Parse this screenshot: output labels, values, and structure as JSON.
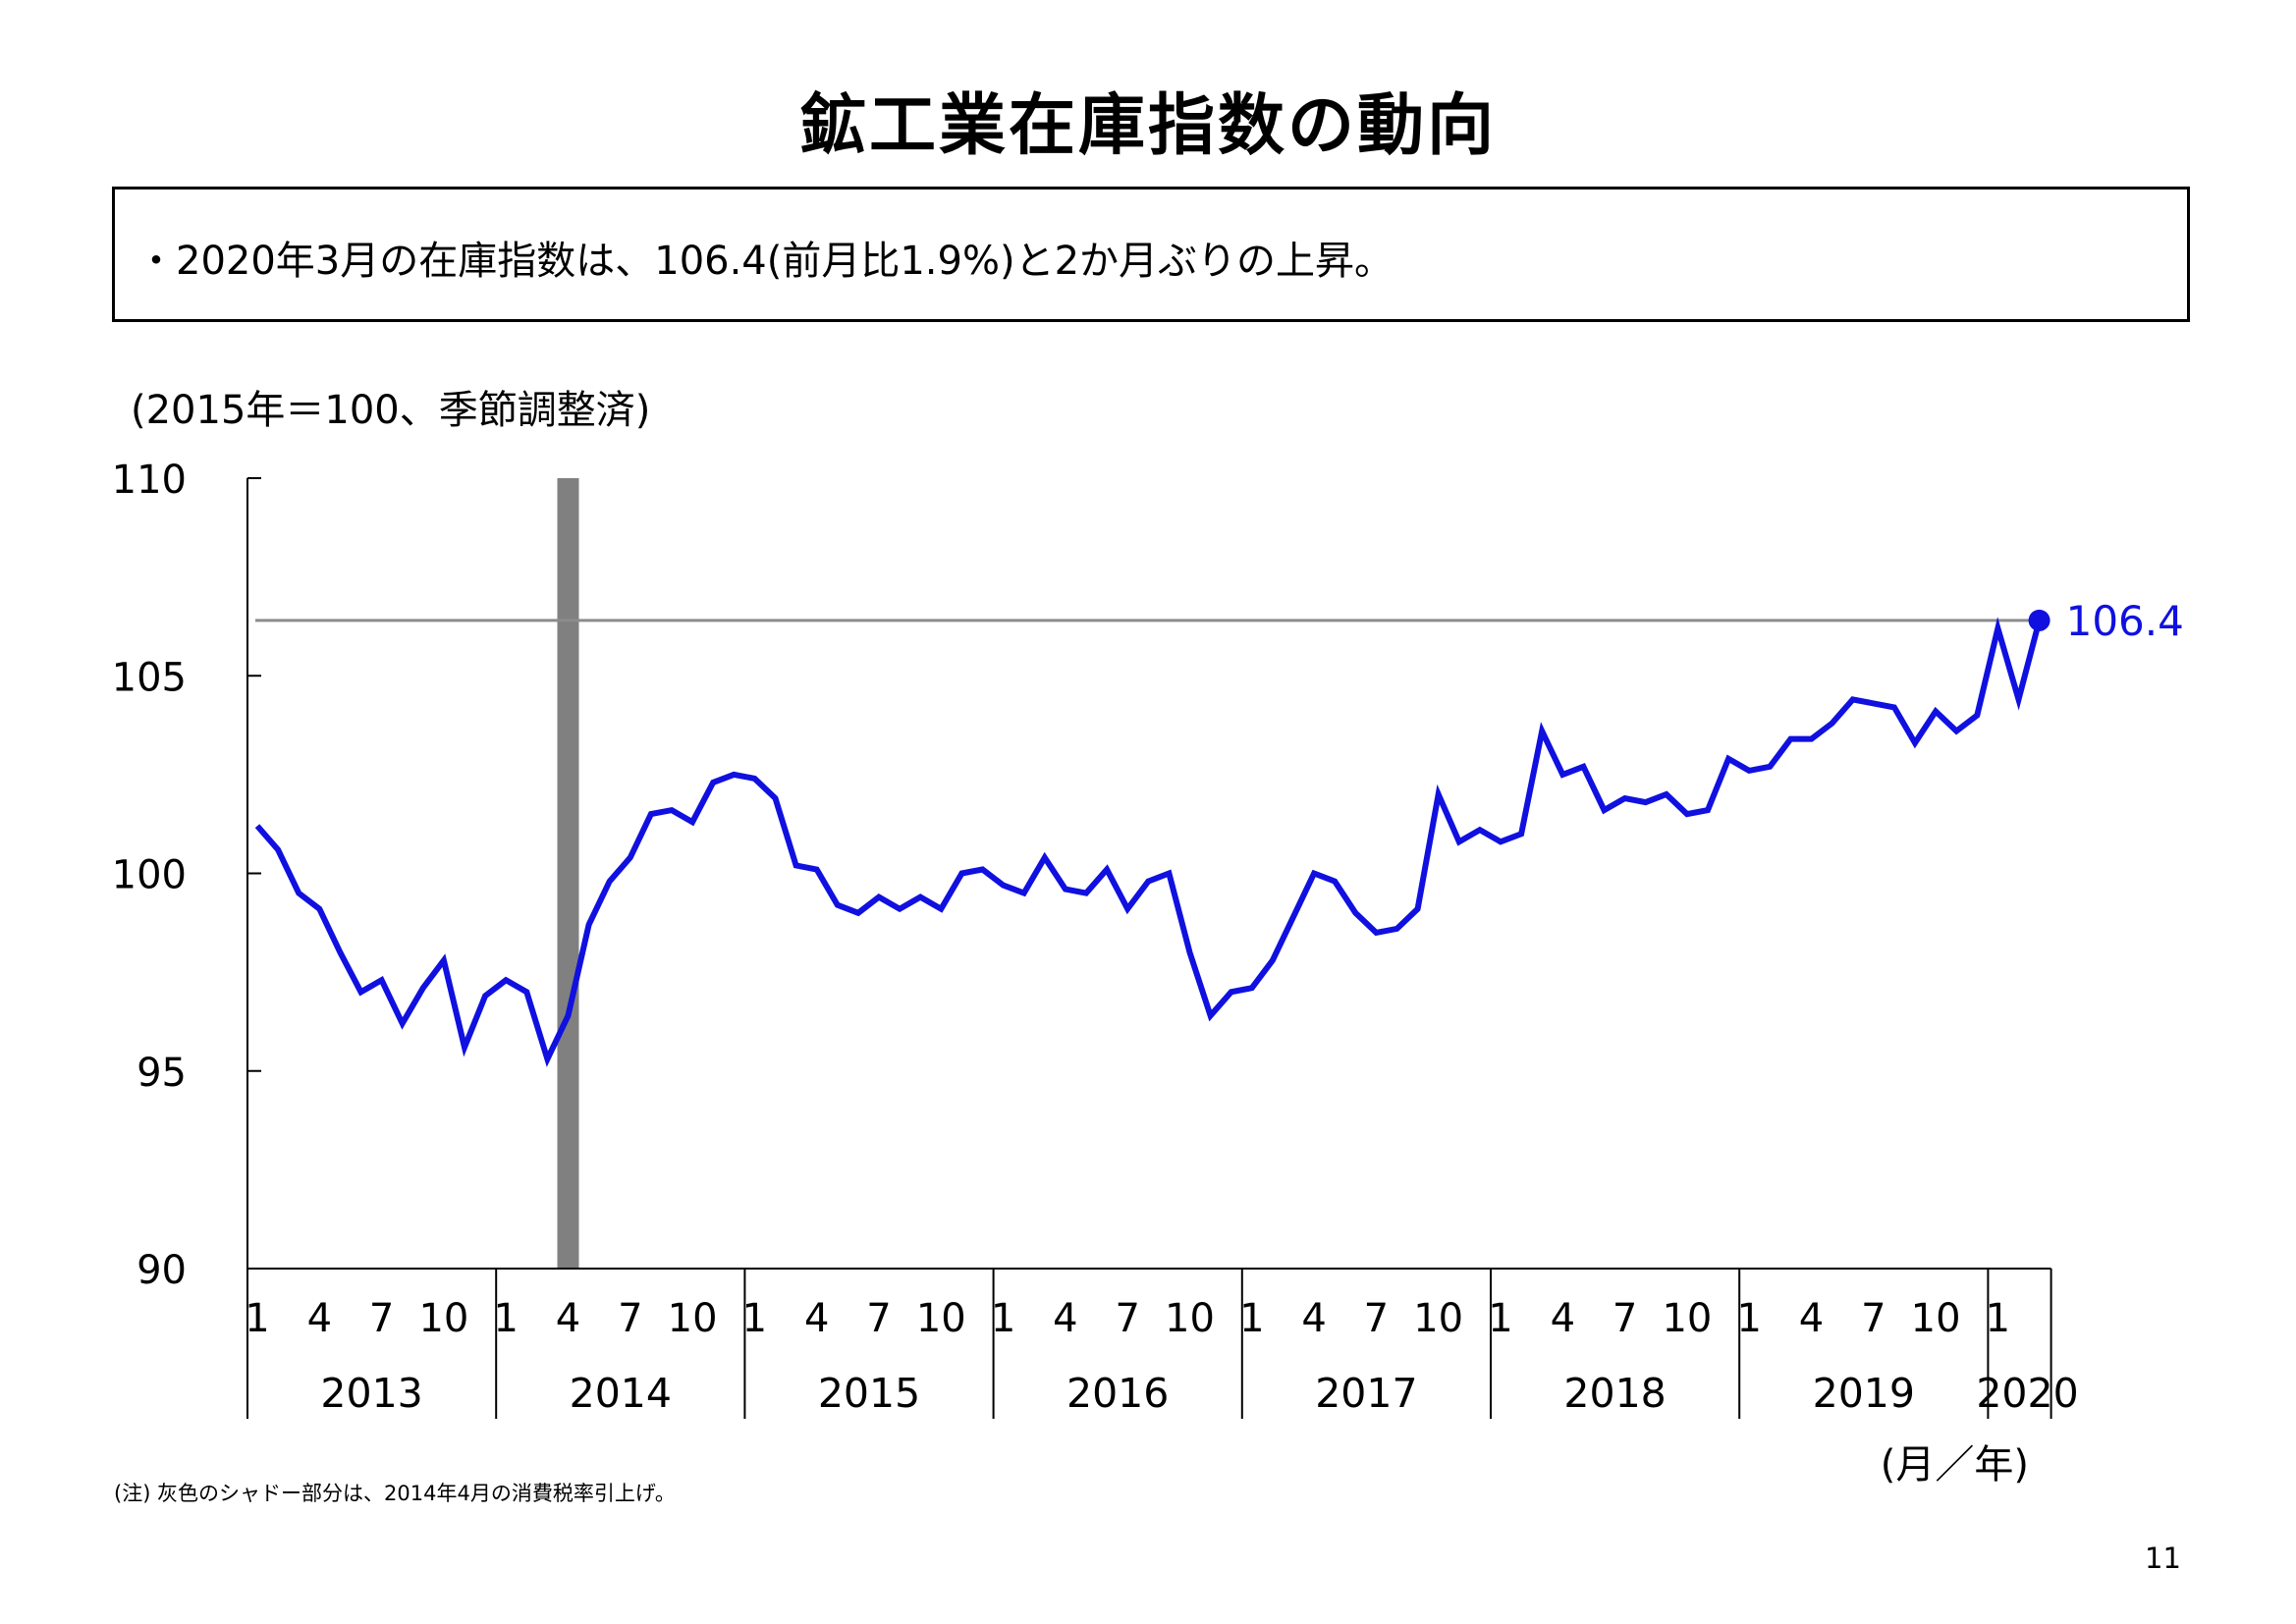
{
  "page": {
    "title": "鉱工業在庫指数の動向",
    "summary": "・2020年3月の在庫指数は、106.4(前月比1.9%)と2か月ぶりの上昇。",
    "unit_note": "(2015年＝100、季節調整済)",
    "footnote": "(注) 灰色のシャドー部分は、2014年4月の消費税率引上げ。",
    "page_number": "11"
  },
  "colors": {
    "series": "#1010e0",
    "shade": "#808080",
    "ref_line": "#8c8c8c",
    "axis": "#000000"
  },
  "chart_data": {
    "type": "line",
    "title": "",
    "xlabel": "(月／年)",
    "ylabel": "(2015年＝100、季節調整済)",
    "ylim": [
      90,
      110
    ],
    "yticks": [
      "90",
      "95",
      "100",
      "105",
      "110"
    ],
    "grid": false,
    "x_month_ticks": [
      "1",
      "4",
      "7",
      "10"
    ],
    "years": [
      "2013",
      "2014",
      "2015",
      "2016",
      "2017",
      "2018",
      "2019",
      "2020"
    ],
    "series": [
      {
        "x_start": "2013-01",
        "x_end": "2020-03",
        "values": [
          101.2,
          100.6,
          99.5,
          99.1,
          98.0,
          97.0,
          97.3,
          96.2,
          97.1,
          97.8,
          95.6,
          96.9,
          97.3,
          97.0,
          95.3,
          96.4,
          98.7,
          99.8,
          100.4,
          101.5,
          101.6,
          101.3,
          102.3,
          102.5,
          102.4,
          101.9,
          100.2,
          100.1,
          99.2,
          99.0,
          99.4,
          99.1,
          99.4,
          99.1,
          100.0,
          100.1,
          99.7,
          99.5,
          100.4,
          99.6,
          99.5,
          100.1,
          99.1,
          99.8,
          100.0,
          98.0,
          96.4,
          97.0,
          97.1,
          97.8,
          98.9,
          100.0,
          99.8,
          99.0,
          98.5,
          98.6,
          99.1,
          102.0,
          100.8,
          101.1,
          100.8,
          101.0,
          103.6,
          102.5,
          102.7,
          101.6,
          101.9,
          101.8,
          102.0,
          101.5,
          101.6,
          102.9,
          102.6,
          102.7,
          103.4,
          103.4,
          103.8,
          104.4,
          104.3,
          104.2,
          103.3,
          104.1,
          103.6,
          104.0,
          106.2,
          104.4,
          106.4
        ]
      }
    ],
    "end_point_label": "106.4",
    "reference_line_value": 106.4,
    "shaded_period": "2014-04"
  }
}
